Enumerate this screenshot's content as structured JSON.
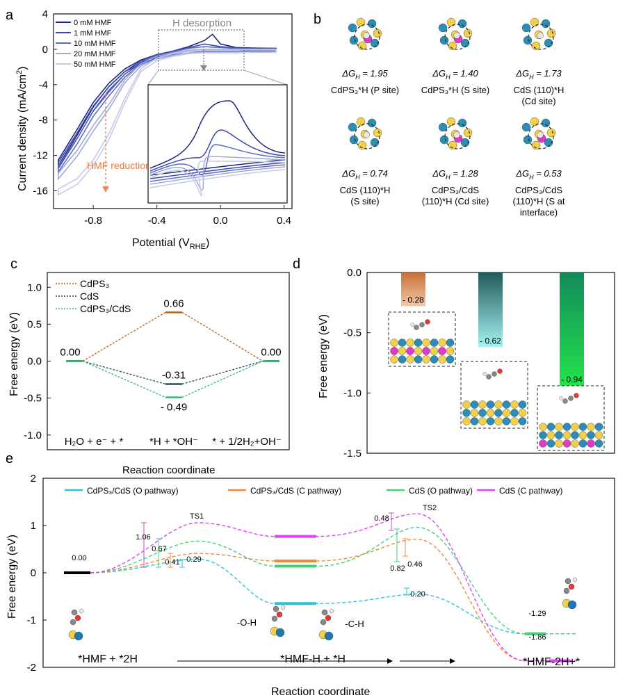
{
  "chart_data": [
    {
      "panel": "a",
      "type": "line",
      "xlabel_main": "Potential (V",
      "xlabel_sub": "RHE",
      "xlabel_end": ")",
      "ylabel": "Current density (mA/cm",
      "ylabel_sup": "2",
      "ylabel_end": ")",
      "xticks": [
        "-0.8",
        "-0.4",
        "0.0",
        "0.4"
      ],
      "yticks": [
        "4",
        "0",
        "-4",
        "-8",
        "-12",
        "-16"
      ],
      "xlim": [
        -1.05,
        0.45
      ],
      "ylim": [
        -18,
        4
      ],
      "legend": [
        "0 mM HMF",
        "1 mM HMF",
        "10 mM HMF",
        "20 mM HMF",
        "50 mM HMF"
      ],
      "series_colors": [
        "#1a237e",
        "#3949ab",
        "#5c6bc0",
        "#9fa8da",
        "#c5cae9"
      ],
      "series": [
        {
          "name": "0 mM HMF",
          "x": [
            -1.02,
            -0.9,
            -0.8,
            -0.7,
            -0.6,
            -0.5,
            -0.4,
            -0.3,
            -0.2,
            -0.1,
            -0.05,
            0.0,
            0.1,
            0.2,
            0.35
          ],
          "y": [
            -12.5,
            -9,
            -6,
            -3.8,
            -2.2,
            -1.2,
            -0.6,
            -0.2,
            0.3,
            1.0,
            1.7,
            0.6,
            0.2,
            0.15,
            0.1
          ]
        },
        {
          "name": "1 mM HMF",
          "x": [
            -1.02,
            -0.9,
            -0.8,
            -0.7,
            -0.6,
            -0.5,
            -0.4,
            -0.3,
            -0.2,
            -0.1,
            0.0,
            0.1,
            0.2,
            0.35
          ],
          "y": [
            -12.8,
            -9.4,
            -6.4,
            -4.2,
            -2.5,
            -1.3,
            -0.6,
            -0.2,
            0.2,
            0.6,
            0.3,
            0.15,
            0.1,
            0.1
          ]
        },
        {
          "name": "10 mM HMF",
          "x": [
            -1.02,
            -0.9,
            -0.8,
            -0.7,
            -0.6,
            -0.5,
            -0.4,
            -0.3,
            -0.2,
            -0.1,
            0.0,
            0.1,
            0.2,
            0.35
          ],
          "y": [
            -13.2,
            -10,
            -7,
            -4.8,
            -2.8,
            -1.4,
            -0.7,
            -0.3,
            0.1,
            0.3,
            0.2,
            0.1,
            0.05,
            0.05
          ]
        },
        {
          "name": "20 mM HMF",
          "x": [
            -1.02,
            -0.9,
            -0.8,
            -0.7,
            -0.6,
            -0.5,
            -0.4,
            -0.3,
            -0.2,
            -0.1,
            0.0,
            0.1,
            0.2,
            0.35
          ],
          "y": [
            -14,
            -11.4,
            -8.6,
            -6.2,
            -3.4,
            -1.6,
            -0.8,
            -0.4,
            -0.1,
            0.0,
            0.0,
            0.0,
            0.0,
            0.0
          ]
        },
        {
          "name": "50 mM HMF",
          "x": [
            -1.02,
            -0.9,
            -0.8,
            -0.7,
            -0.6,
            -0.5,
            -0.4,
            -0.3,
            -0.2,
            -0.1,
            0.0,
            0.1,
            0.2,
            0.35
          ],
          "y": [
            -15.8,
            -14.6,
            -12.5,
            -9.5,
            -5.5,
            -2.2,
            -1.0,
            -0.5,
            -0.2,
            -0.1,
            -0.1,
            -0.1,
            -0.05,
            -0.05
          ]
        }
      ],
      "annotations": [
        "H desorption",
        "HMF reduction"
      ]
    },
    {
      "panel": "b",
      "type": "table",
      "entries": [
        {
          "dg_label": "ΔG",
          "dg_sub": "H",
          "dg_value": "= 1.95",
          "name_line1": "CdPS₃*H (P site)",
          "name_line2": "",
          "name_line3": ""
        },
        {
          "dg_label": "ΔG",
          "dg_sub": "H",
          "dg_value": "= 1.40",
          "name_line1": "CdPS₃*H (S site)",
          "name_line2": "",
          "name_line3": ""
        },
        {
          "dg_label": "ΔG",
          "dg_sub": "H",
          "dg_value": "= 1.73",
          "name_line1": "CdS (110)*H",
          "name_line2": "(Cd site)",
          "name_line3": ""
        },
        {
          "dg_label": "ΔG",
          "dg_sub": "H",
          "dg_value": "= 0.74",
          "name_line1": "CdS (110)*H",
          "name_line2": "(S site)",
          "name_line3": ""
        },
        {
          "dg_label": "ΔG",
          "dg_sub": "H",
          "dg_value": "= 1.28",
          "name_line1": "CdPS₃/CdS",
          "name_line2": "(110)*H (Cd site)",
          "name_line3": ""
        },
        {
          "dg_label": "ΔG",
          "dg_sub": "H",
          "dg_value": "= 0.53",
          "name_line1": "CdPS₃/CdS",
          "name_line2": "(110)*H (S at",
          "name_line3": "interface)"
        }
      ]
    },
    {
      "panel": "c",
      "type": "line",
      "xlabel": "Reaction coordinate",
      "ylabel": "Free energy (eV)",
      "ylim": [
        -1.2,
        1.2
      ],
      "yticks": [
        "1.0",
        "0.5",
        "0.0",
        "-0.5",
        "-1.0"
      ],
      "states": [
        "H₂O + e⁻ + *",
        "*H + *OH⁻",
        "* + 1/2H₂+OH⁻"
      ],
      "series": [
        {
          "name": "CdPS₃",
          "values": [
            0.0,
            0.66,
            0.0
          ],
          "color": "#b5651d"
        },
        {
          "name": "CdS",
          "values": [
            0.0,
            -0.31,
            0.0
          ],
          "color": "#1f4e5a"
        },
        {
          "name": "CdPS₃/CdS",
          "values": [
            0.0,
            -0.49,
            0.0
          ],
          "color": "#3cb371"
        }
      ],
      "value_labels": [
        "0.00",
        "0.66",
        "-0.31",
        "- 0.49",
        "0.00"
      ]
    },
    {
      "panel": "d",
      "type": "bar",
      "ylabel": "Free energy (eV)",
      "ylim": [
        -1.5,
        0.0
      ],
      "yticks": [
        "0.0",
        "-0.5",
        "-1.0",
        "-1.5"
      ],
      "values": [
        -0.28,
        -0.62,
        -0.94
      ],
      "value_labels": [
        "- 0.28",
        "- 0.62",
        "- 0.94"
      ],
      "colors": [
        "#c8703a",
        "#26a69a",
        "#00c853"
      ]
    },
    {
      "panel": "e",
      "type": "line",
      "xlabel": "Reaction coordinate",
      "ylabel": "Free energy (eV)",
      "ylim": [
        -2,
        2
      ],
      "yticks": [
        "2",
        "1",
        "0",
        "-1",
        "-2"
      ],
      "legend": [
        "CdPS₃/CdS (O pathway)",
        "CdPS₃/CdS (C pathway)",
        "CdS (O pathway)",
        "CdS (C pathway)"
      ],
      "series": [
        {
          "name": "CdPS₃/CdS (O pathway)",
          "color": "#26c6da",
          "values": [
            0.0,
            0.29,
            -0.65,
            -0.45,
            -1.29
          ]
        },
        {
          "name": "CdPS₃/CdS (C pathway)",
          "color": "#ef8a3a",
          "values": [
            0.0,
            0.41,
            0.25,
            0.71,
            -1.86
          ]
        },
        {
          "name": "CdS (O pathway)",
          "color": "#43d17a",
          "values": [
            0.0,
            0.67,
            0.14,
            0.96,
            -1.29
          ]
        },
        {
          "name": "CdS (C pathway)",
          "color": "#e040fb",
          "values": [
            0.0,
            1.06,
            0.77,
            1.25,
            -1.86
          ]
        }
      ],
      "labels": {
        "start": "0.00",
        "ts1": "TS1",
        "ts2": "TS2",
        "b1": "1.06",
        "b2": "0.67",
        "b3": "0.41",
        "b4": "0.29",
        "b5": "0.48",
        "b6": "0.82",
        "b7": "0.46",
        "b8": "0.20",
        "end1": "-1.29",
        "end2": "-1.86"
      },
      "states": [
        "*HMF  +  *2H",
        "*HMF-H  +  *H",
        "*HMF-2H+*"
      ],
      "insets": [
        "-O-H",
        "-C-H"
      ]
    }
  ],
  "panel_letters": [
    "a",
    "b",
    "c",
    "d",
    "e"
  ]
}
